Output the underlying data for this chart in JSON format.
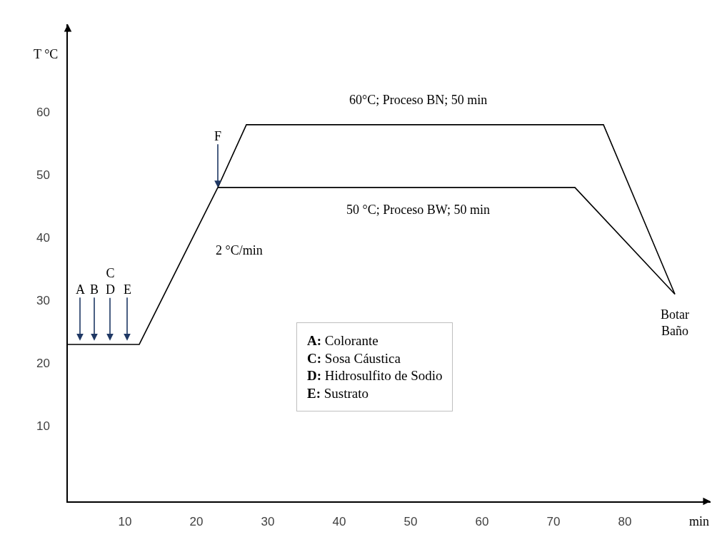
{
  "chart_data": {
    "type": "line",
    "xlabel": "min",
    "ylabel": "T °C",
    "xlim": [
      2,
      92
    ],
    "ylim": [
      -2,
      74
    ],
    "xticks": [
      10,
      20,
      30,
      40,
      50,
      60,
      70,
      80
    ],
    "yticks": [
      10,
      20,
      30,
      40,
      50,
      60
    ],
    "line_style": "solid",
    "series": [
      {
        "color": "#000000",
        "x": [
          2,
          12,
          23,
          27,
          77,
          87
        ],
        "values": [
          23,
          23,
          48,
          58,
          58,
          31
        ]
      },
      {
        "color": "#000000",
        "x": [
          23,
          73,
          87
        ],
        "values": [
          48,
          48,
          31
        ]
      }
    ],
    "annotations": [
      "60°C; Proceso BN; 50 min",
      "50 °C; Proceso BW; 50 min",
      "2 °C/min",
      "Botar\nBaño",
      {
        "text": "A",
        "x": 3.7,
        "y": 23.6
      },
      {
        "text": "B",
        "x": 5.7,
        "y": 23.6
      },
      {
        "text": "C\nD",
        "x": 7.9,
        "y": 23.6
      },
      {
        "text": "E",
        "x": 10.3,
        "y": 23.6
      },
      {
        "text": "F",
        "x": 23,
        "y": 48
      },
      "A: Colorante\nC: Sosa Cáustica\nD: Hidrosulfito de Sodio\nE: Sustrato"
    ]
  }
}
